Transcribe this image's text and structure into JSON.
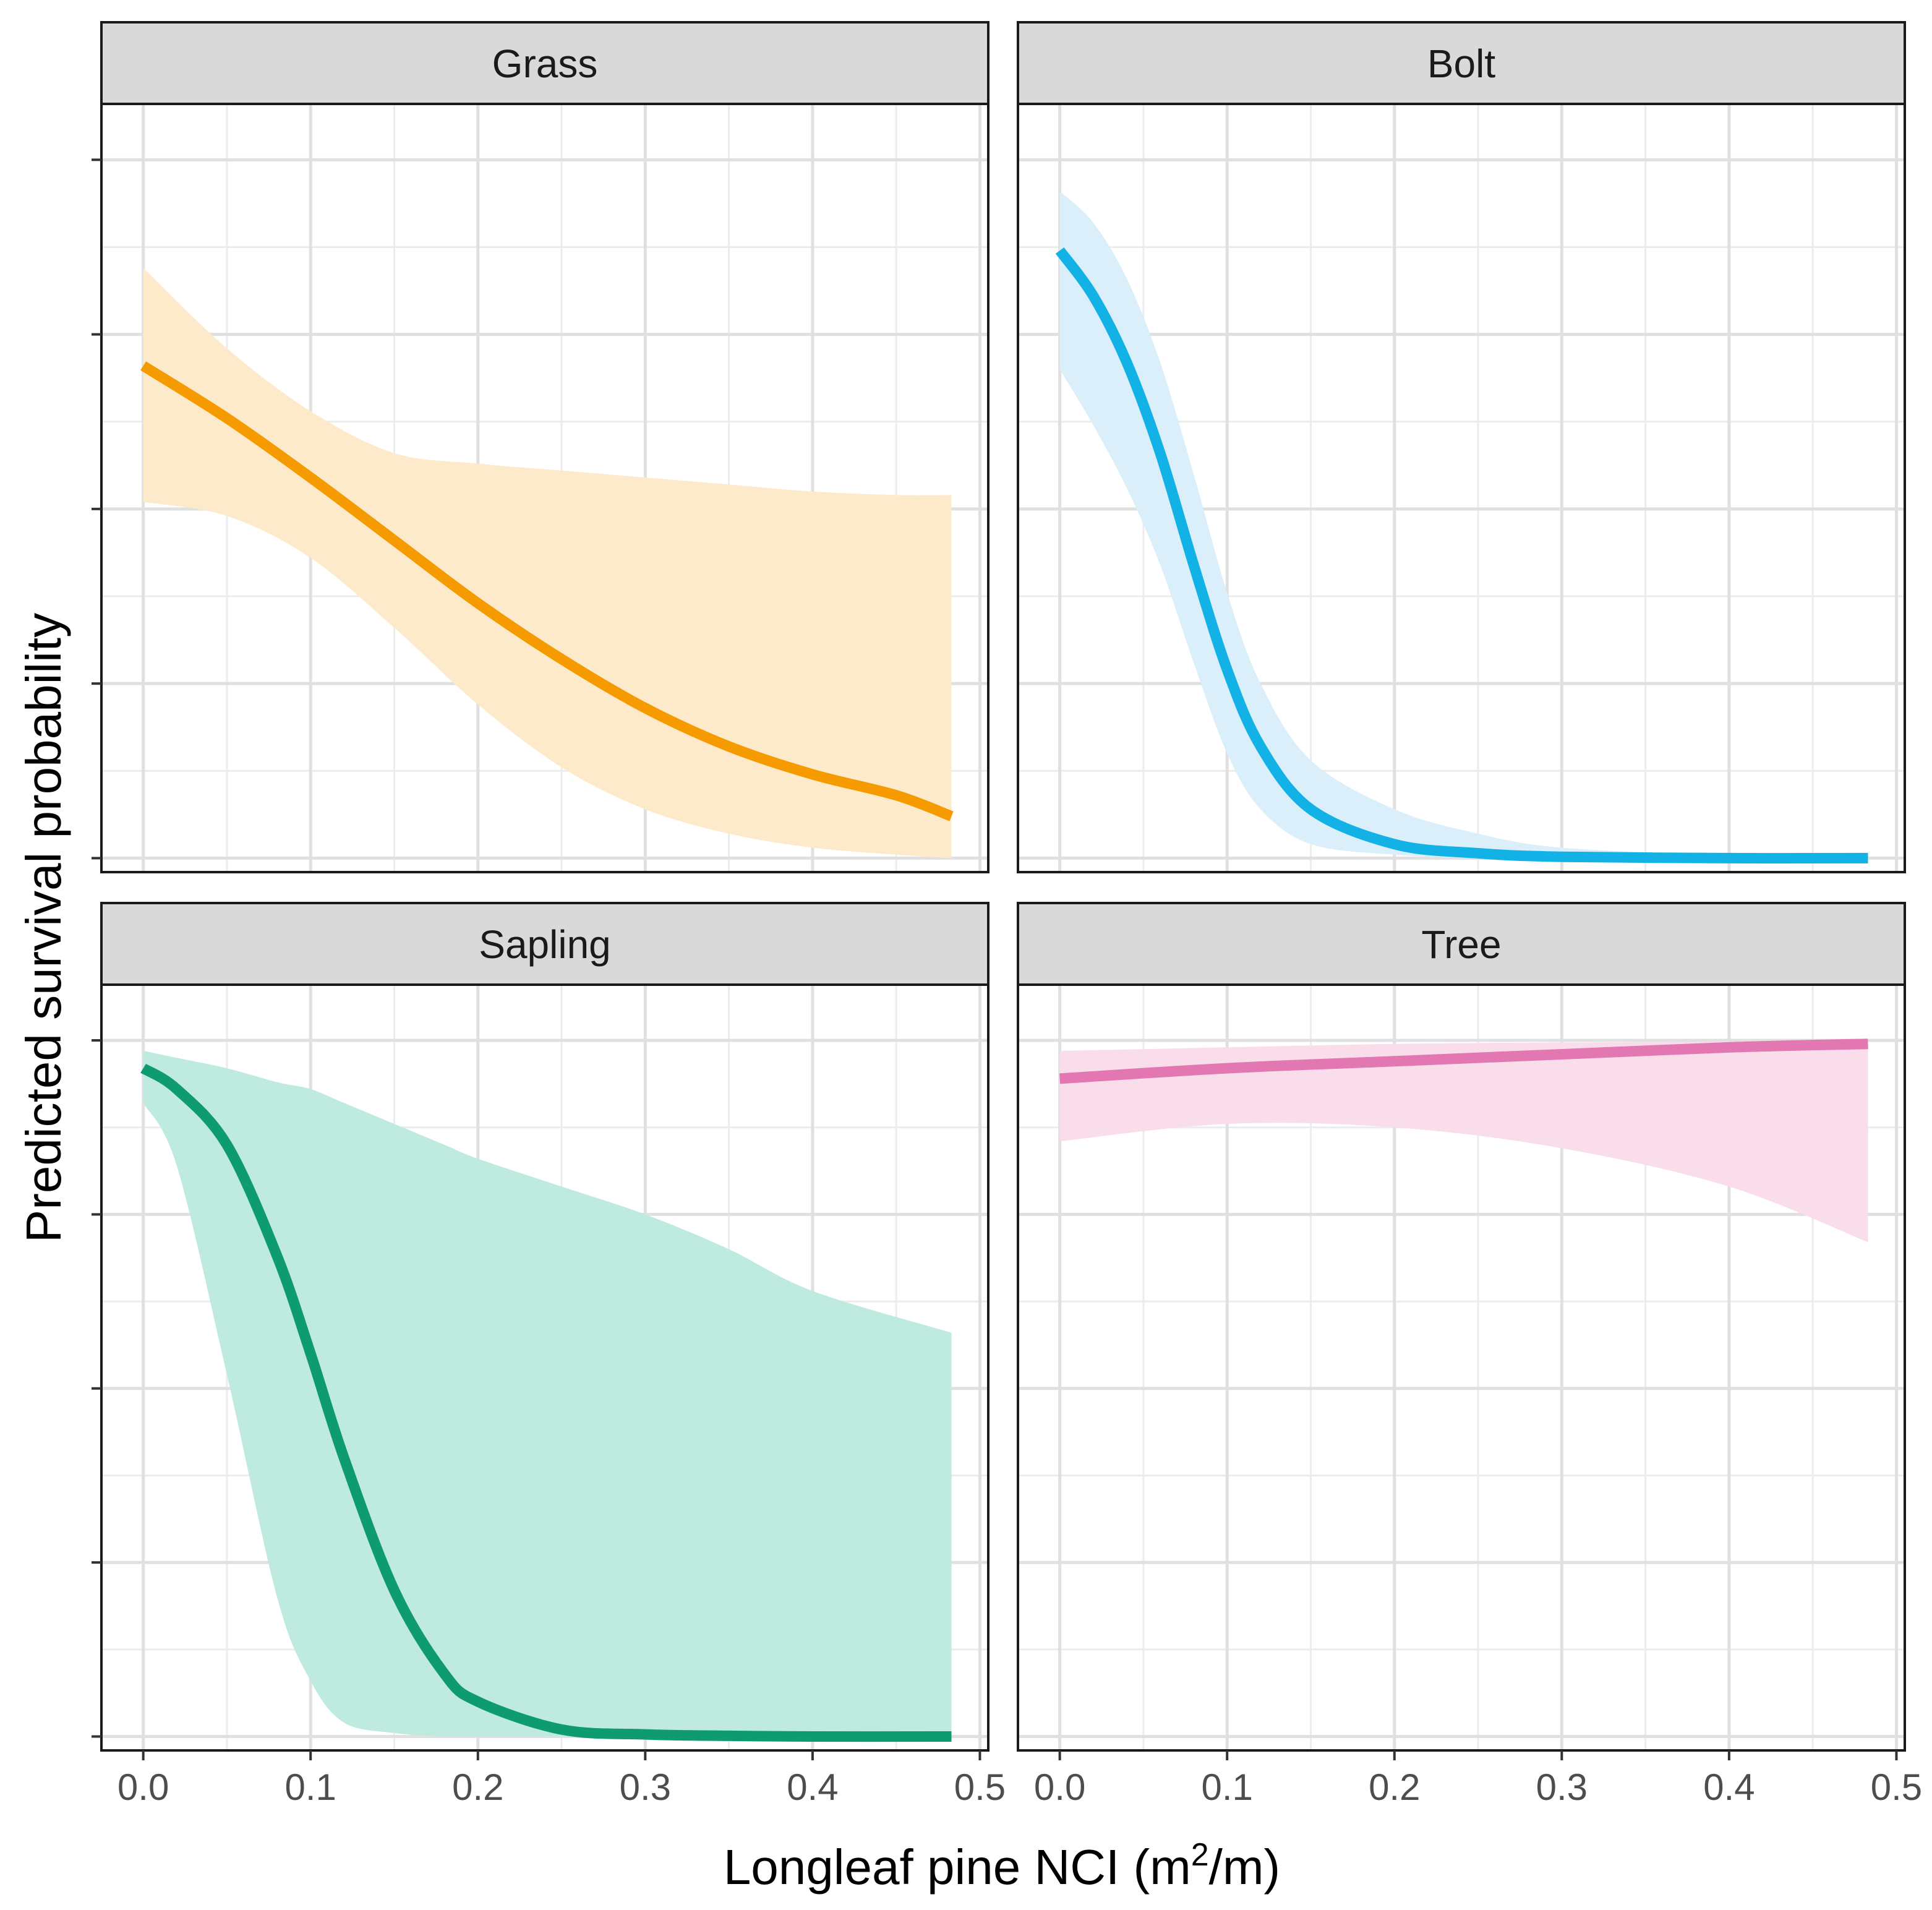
{
  "chart_data": {
    "type": "line",
    "title": "",
    "xlabel": "Longleaf pine NCI (m²/m)",
    "xlabel_parts": {
      "pre": "Longleaf pine NCI (m",
      "sup": "2",
      "post": "/m)"
    },
    "ylabel": "Predicted survival probability",
    "xlim": [
      -0.025,
      0.505
    ],
    "ylim": [
      -0.02,
      1.08
    ],
    "x_ticks": [
      0.0,
      0.1,
      0.2,
      0.3,
      0.4,
      0.5
    ],
    "x_tick_labels": [
      "0.0",
      "0.1",
      "0.2",
      "0.3",
      "0.4",
      "0.5"
    ],
    "y_ticks": [
      0.0,
      0.25,
      0.5,
      0.75,
      1.0
    ],
    "y_tick_labels": [
      "",
      "",
      "",
      "",
      ""
    ],
    "grid": true,
    "layout": "2x2 facets",
    "panels": [
      {
        "name": "Grass",
        "color": "#F59B00",
        "band_color": "#FDEACB",
        "x": [
          0.0,
          0.05,
          0.1,
          0.15,
          0.2,
          0.25,
          0.3,
          0.35,
          0.4,
          0.45,
          0.483
        ],
        "y": [
          0.705,
          0.63,
          0.545,
          0.455,
          0.365,
          0.285,
          0.215,
          0.16,
          0.12,
          0.09,
          0.06
        ],
        "lower": [
          0.51,
          0.49,
          0.43,
          0.33,
          0.22,
          0.13,
          0.07,
          0.035,
          0.015,
          0.005,
          0.0
        ],
        "upper": [
          0.845,
          0.73,
          0.64,
          0.58,
          0.565,
          0.555,
          0.545,
          0.535,
          0.525,
          0.52,
          0.52
        ]
      },
      {
        "name": "Bolt",
        "color": "#13B2E6",
        "band_color": "#DAEFFA",
        "x": [
          0.0,
          0.02,
          0.04,
          0.06,
          0.08,
          0.1,
          0.12,
          0.15,
          0.2,
          0.25,
          0.3,
          0.4,
          0.483
        ],
        "y": [
          0.87,
          0.805,
          0.71,
          0.58,
          0.42,
          0.27,
          0.16,
          0.07,
          0.02,
          0.007,
          0.002,
          0.0,
          0.0
        ],
        "lower": [
          0.7,
          0.62,
          0.53,
          0.42,
          0.28,
          0.15,
          0.07,
          0.02,
          0.005,
          0.0,
          0.0,
          0.0,
          0.0
        ],
        "upper": [
          0.955,
          0.91,
          0.83,
          0.71,
          0.55,
          0.38,
          0.25,
          0.14,
          0.07,
          0.035,
          0.015,
          0.004,
          0.0
        ]
      },
      {
        "name": "Sapling",
        "color": "#0E9B70",
        "band_color": "#BEEADF",
        "x": [
          0.0,
          0.02,
          0.05,
          0.08,
          0.1,
          0.12,
          0.15,
          0.18,
          0.2,
          0.25,
          0.3,
          0.35,
          0.4,
          0.483
        ],
        "y": [
          0.96,
          0.93,
          0.85,
          0.69,
          0.55,
          0.4,
          0.21,
          0.09,
          0.05,
          0.01,
          0.003,
          0.001,
          0.0,
          0.0
        ],
        "lower": [
          0.91,
          0.82,
          0.52,
          0.2,
          0.08,
          0.02,
          0.005,
          0.0,
          0.0,
          0.0,
          0.0,
          0.0,
          0.0,
          0.0
        ],
        "upper": [
          0.985,
          0.975,
          0.96,
          0.94,
          0.93,
          0.91,
          0.88,
          0.85,
          0.83,
          0.79,
          0.75,
          0.7,
          0.64,
          0.58
        ]
      },
      {
        "name": "Tree",
        "color": "#E377B1",
        "band_color": "#F9DDEB",
        "x": [
          0.0,
          0.1,
          0.2,
          0.3,
          0.4,
          0.483
        ],
        "y": [
          0.945,
          0.96,
          0.97,
          0.98,
          0.99,
          0.995
        ],
        "lower": [
          0.855,
          0.88,
          0.875,
          0.845,
          0.79,
          0.71
        ],
        "upper": [
          0.985,
          0.99,
          0.995,
          0.997,
          0.998,
          0.998
        ]
      }
    ]
  }
}
